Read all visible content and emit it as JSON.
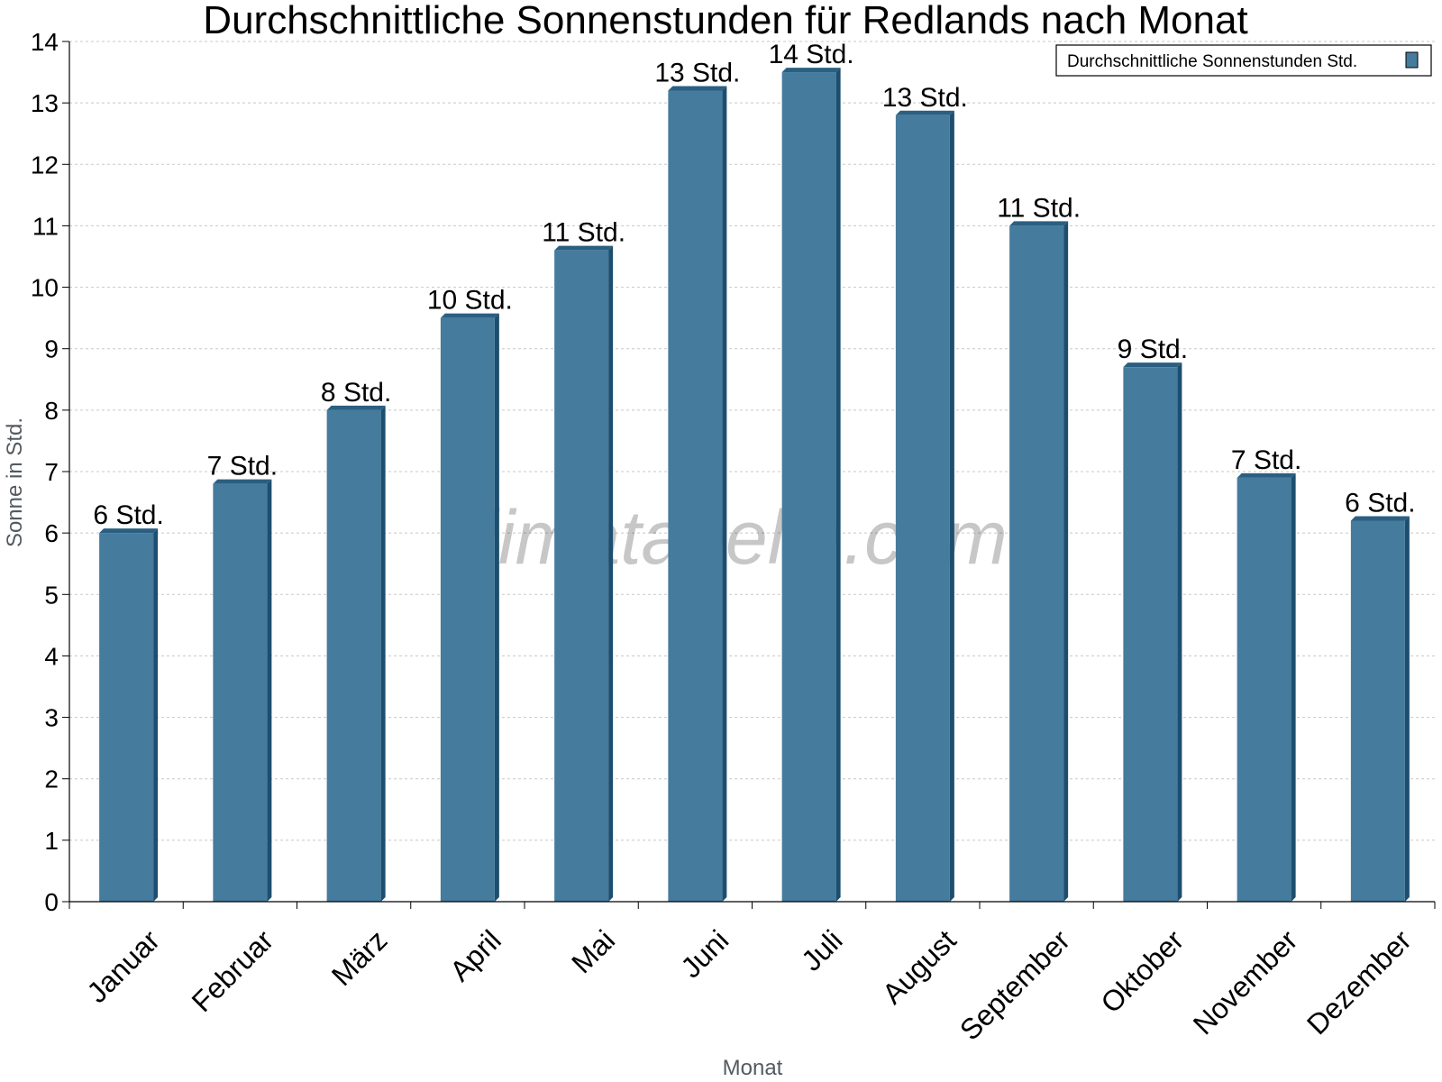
{
  "chart_data": {
    "type": "bar",
    "title": "Durchschnittliche Sonnenstunden für Redlands nach Monat",
    "xlabel": "Monat",
    "ylabel": "Sonne in Std.",
    "ylim": [
      0,
      14
    ],
    "yticks": [
      0,
      1,
      2,
      3,
      4,
      5,
      6,
      7,
      8,
      9,
      10,
      11,
      12,
      13,
      14
    ],
    "categories": [
      "Januar",
      "Februar",
      "März",
      "April",
      "Mai",
      "Juni",
      "Juli",
      "August",
      "September",
      "Oktober",
      "November",
      "Dezember"
    ],
    "series": [
      {
        "name": "Durchschnittliche Sonnenstunden Std.",
        "values": [
          6.0,
          6.8,
          8.0,
          9.5,
          10.6,
          13.2,
          13.5,
          12.8,
          11.0,
          8.7,
          6.9,
          6.2
        ],
        "labels": [
          "6 Std.",
          "7 Std.",
          "8 Std.",
          "10 Std.",
          "11 Std.",
          "13 Std.",
          "14 Std.",
          "13 Std.",
          "11 Std.",
          "9 Std.",
          "7 Std.",
          "6 Std."
        ]
      }
    ],
    "legend_position": "top-right",
    "grid": true,
    "watermark": "klimatabelle.com",
    "colors": {
      "bar": "#457b9d",
      "bar_side": "#1d4e6f",
      "bar_top": "#2b5f82",
      "grid": "#c8c8c8"
    }
  }
}
